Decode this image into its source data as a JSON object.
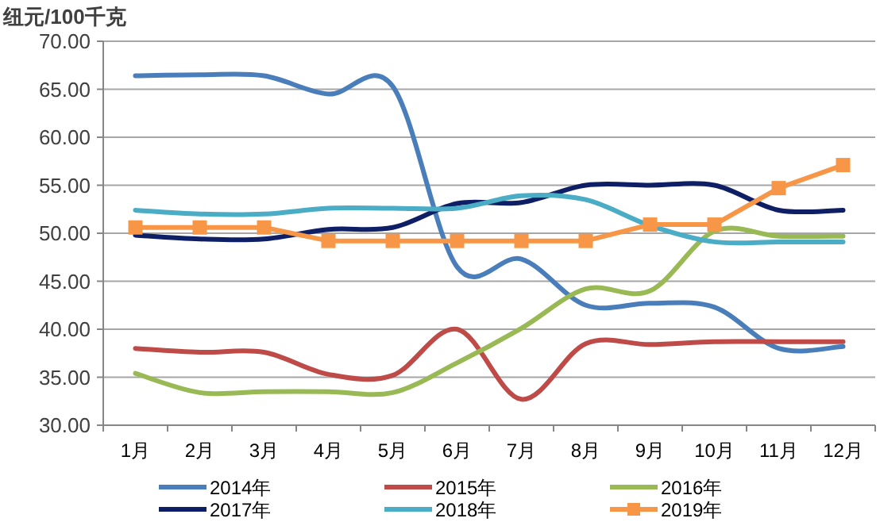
{
  "chart_data": {
    "type": "line",
    "ylabel": "纽元/100千克",
    "categories": [
      "1月",
      "2月",
      "3月",
      "4月",
      "5月",
      "6月",
      "7月",
      "8月",
      "9月",
      "10月",
      "11月",
      "12月"
    ],
    "series": [
      {
        "name": "2014年",
        "color": "#4a7ebb",
        "marker": "none",
        "values": [
          66.4,
          66.5,
          66.4,
          64.5,
          65.3,
          46.5,
          47.3,
          42.5,
          42.7,
          42.3,
          38.0,
          38.2
        ]
      },
      {
        "name": "2015年",
        "color": "#be4b48",
        "marker": "none",
        "values": [
          38.0,
          37.6,
          37.6,
          35.3,
          35.2,
          40.0,
          32.7,
          38.5,
          38.4,
          38.7,
          38.7,
          38.7
        ]
      },
      {
        "name": "2016年",
        "color": "#98b954",
        "marker": "none",
        "values": [
          35.4,
          33.4,
          33.5,
          33.5,
          33.4,
          36.5,
          40.1,
          44.2,
          44.0,
          50.2,
          49.7,
          49.7
        ]
      },
      {
        "name": "2017年",
        "color": "#0e1f66",
        "marker": "none",
        "values": [
          49.8,
          49.4,
          49.4,
          50.4,
          50.6,
          53.1,
          53.2,
          55.0,
          55.0,
          55.0,
          52.4,
          52.4
        ]
      },
      {
        "name": "2018年",
        "color": "#4bacc6",
        "marker": "none",
        "values": [
          52.4,
          52.0,
          52.0,
          52.6,
          52.6,
          52.6,
          53.9,
          53.5,
          50.8,
          49.1,
          49.1,
          49.1
        ]
      },
      {
        "name": "2019年",
        "color": "#f79646",
        "marker": "square",
        "values": [
          50.6,
          50.6,
          50.6,
          49.2,
          49.2,
          49.2,
          49.2,
          49.2,
          50.9,
          50.9,
          54.7,
          57.1
        ]
      }
    ],
    "ylim": [
      30,
      70
    ],
    "yticks": [
      {
        "value": 30,
        "label": "30.00"
      },
      {
        "value": 35,
        "label": "35.00"
      },
      {
        "value": 40,
        "label": "40.00"
      },
      {
        "value": 45,
        "label": "45.00"
      },
      {
        "value": 50,
        "label": "50.00"
      },
      {
        "value": 55,
        "label": "55.00"
      },
      {
        "value": 60,
        "label": "60.00"
      },
      {
        "value": 65,
        "label": "65.00"
      },
      {
        "value": 70,
        "label": "70.00"
      }
    ],
    "grid": "y",
    "legend": "bottom"
  }
}
